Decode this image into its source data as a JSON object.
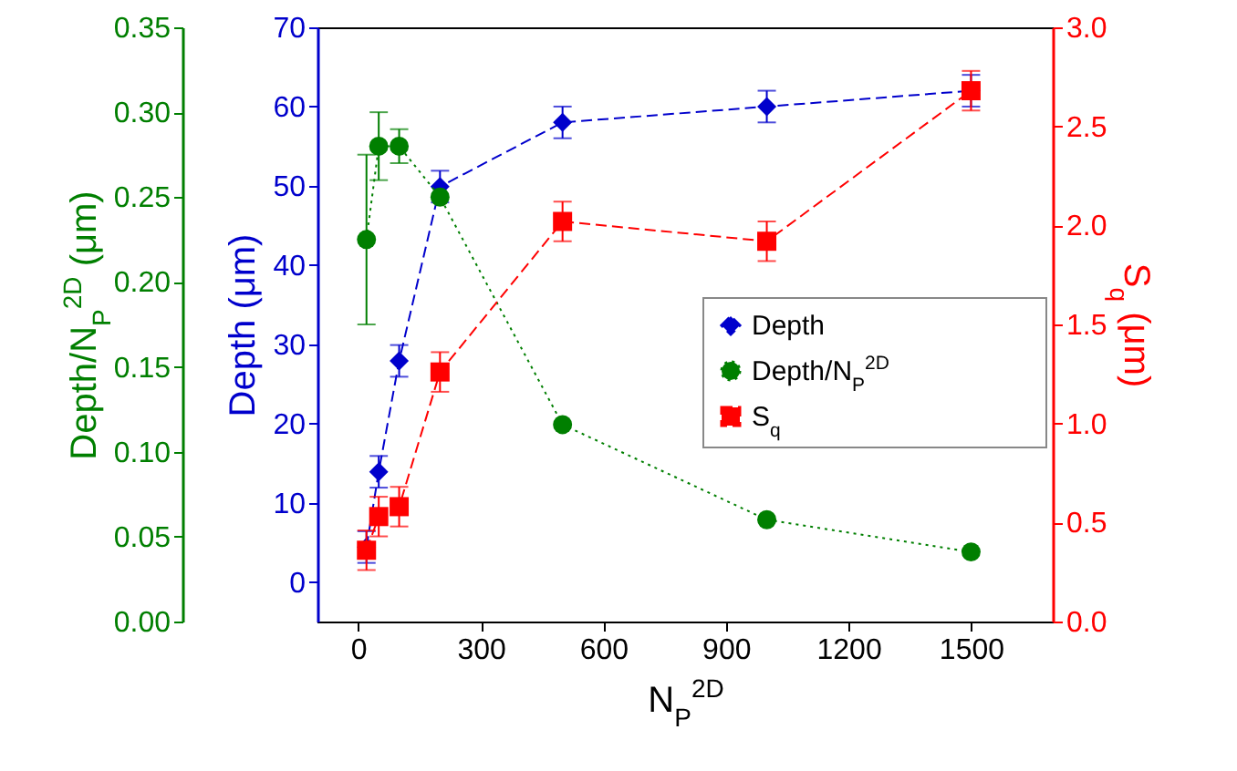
{
  "chart_data": {
    "type": "line",
    "xlabel": "N$_{P}$$^{2D}$",
    "ylabel": "Depth (μm)",
    "y2label": "S$_{q}$ (μm)",
    "y3label": "Depth/N$_{P}$$^{2D}$ (μm)",
    "x": [
      20,
      50,
      100,
      200,
      500,
      1000,
      1500
    ],
    "xlim": [
      -100,
      1700
    ],
    "xticks": [
      0,
      300,
      600,
      900,
      1200,
      1500
    ],
    "ylim": [
      -5,
      70
    ],
    "yticks": [
      0,
      10,
      20,
      30,
      40,
      50,
      60,
      70
    ],
    "y2lim": [
      0,
      3
    ],
    "y2ticks": [
      {
        "value": 0,
        "label": "0.0"
      },
      {
        "value": 0.5,
        "label": "0.5"
      },
      {
        "value": 1,
        "label": "1.0"
      },
      {
        "value": 1.5,
        "label": "1.5"
      },
      {
        "value": 2,
        "label": "2.0"
      },
      {
        "value": 2.5,
        "label": "2.5"
      },
      {
        "value": 3,
        "label": "3.0"
      }
    ],
    "y3lim": [
      0,
      0.35
    ],
    "y3ticks": [
      {
        "value": 0,
        "label": "0.00"
      },
      {
        "value": 0.05,
        "label": "0.05"
      },
      {
        "value": 0.1,
        "label": "0.10"
      },
      {
        "value": 0.15,
        "label": "0.15"
      },
      {
        "value": 0.2,
        "label": "0.20"
      },
      {
        "value": 0.25,
        "label": "0.25"
      },
      {
        "value": 0.3,
        "label": "0.30"
      },
      {
        "value": 0.35,
        "label": "0.35"
      }
    ],
    "series": [
      {
        "name": "Depth",
        "color": "#0000cc",
        "axis": "y",
        "marker": "diamond",
        "line_style": "dashed",
        "values": [
          4.4,
          13.9,
          27.9,
          49.9,
          58,
          60,
          62
        ],
        "errors": [
          2,
          2,
          2,
          2,
          2,
          2,
          2
        ]
      },
      {
        "name": "Depth/N$_{P}$$^{2D}$",
        "color": "#007f00",
        "axis": "y3",
        "marker": "circle",
        "line_style": "dotted",
        "values": [
          0.225,
          0.28,
          0.28,
          0.25,
          0.116,
          0.06,
          0.041
        ],
        "errors": [
          0.05,
          0.02,
          0.01,
          null,
          null,
          null,
          null
        ]
      },
      {
        "name": "S$_{q}$",
        "color": "#ff0000",
        "axis": "y2",
        "marker": "square",
        "line_style": "dashed",
        "values": [
          0.36,
          0.53,
          0.58,
          1.26,
          2.02,
          1.92,
          2.68
        ],
        "errors": [
          0.1,
          0.1,
          0.1,
          0.1,
          0.1,
          0.1,
          0.1
        ]
      }
    ],
    "legend": "right",
    "grid": false
  }
}
